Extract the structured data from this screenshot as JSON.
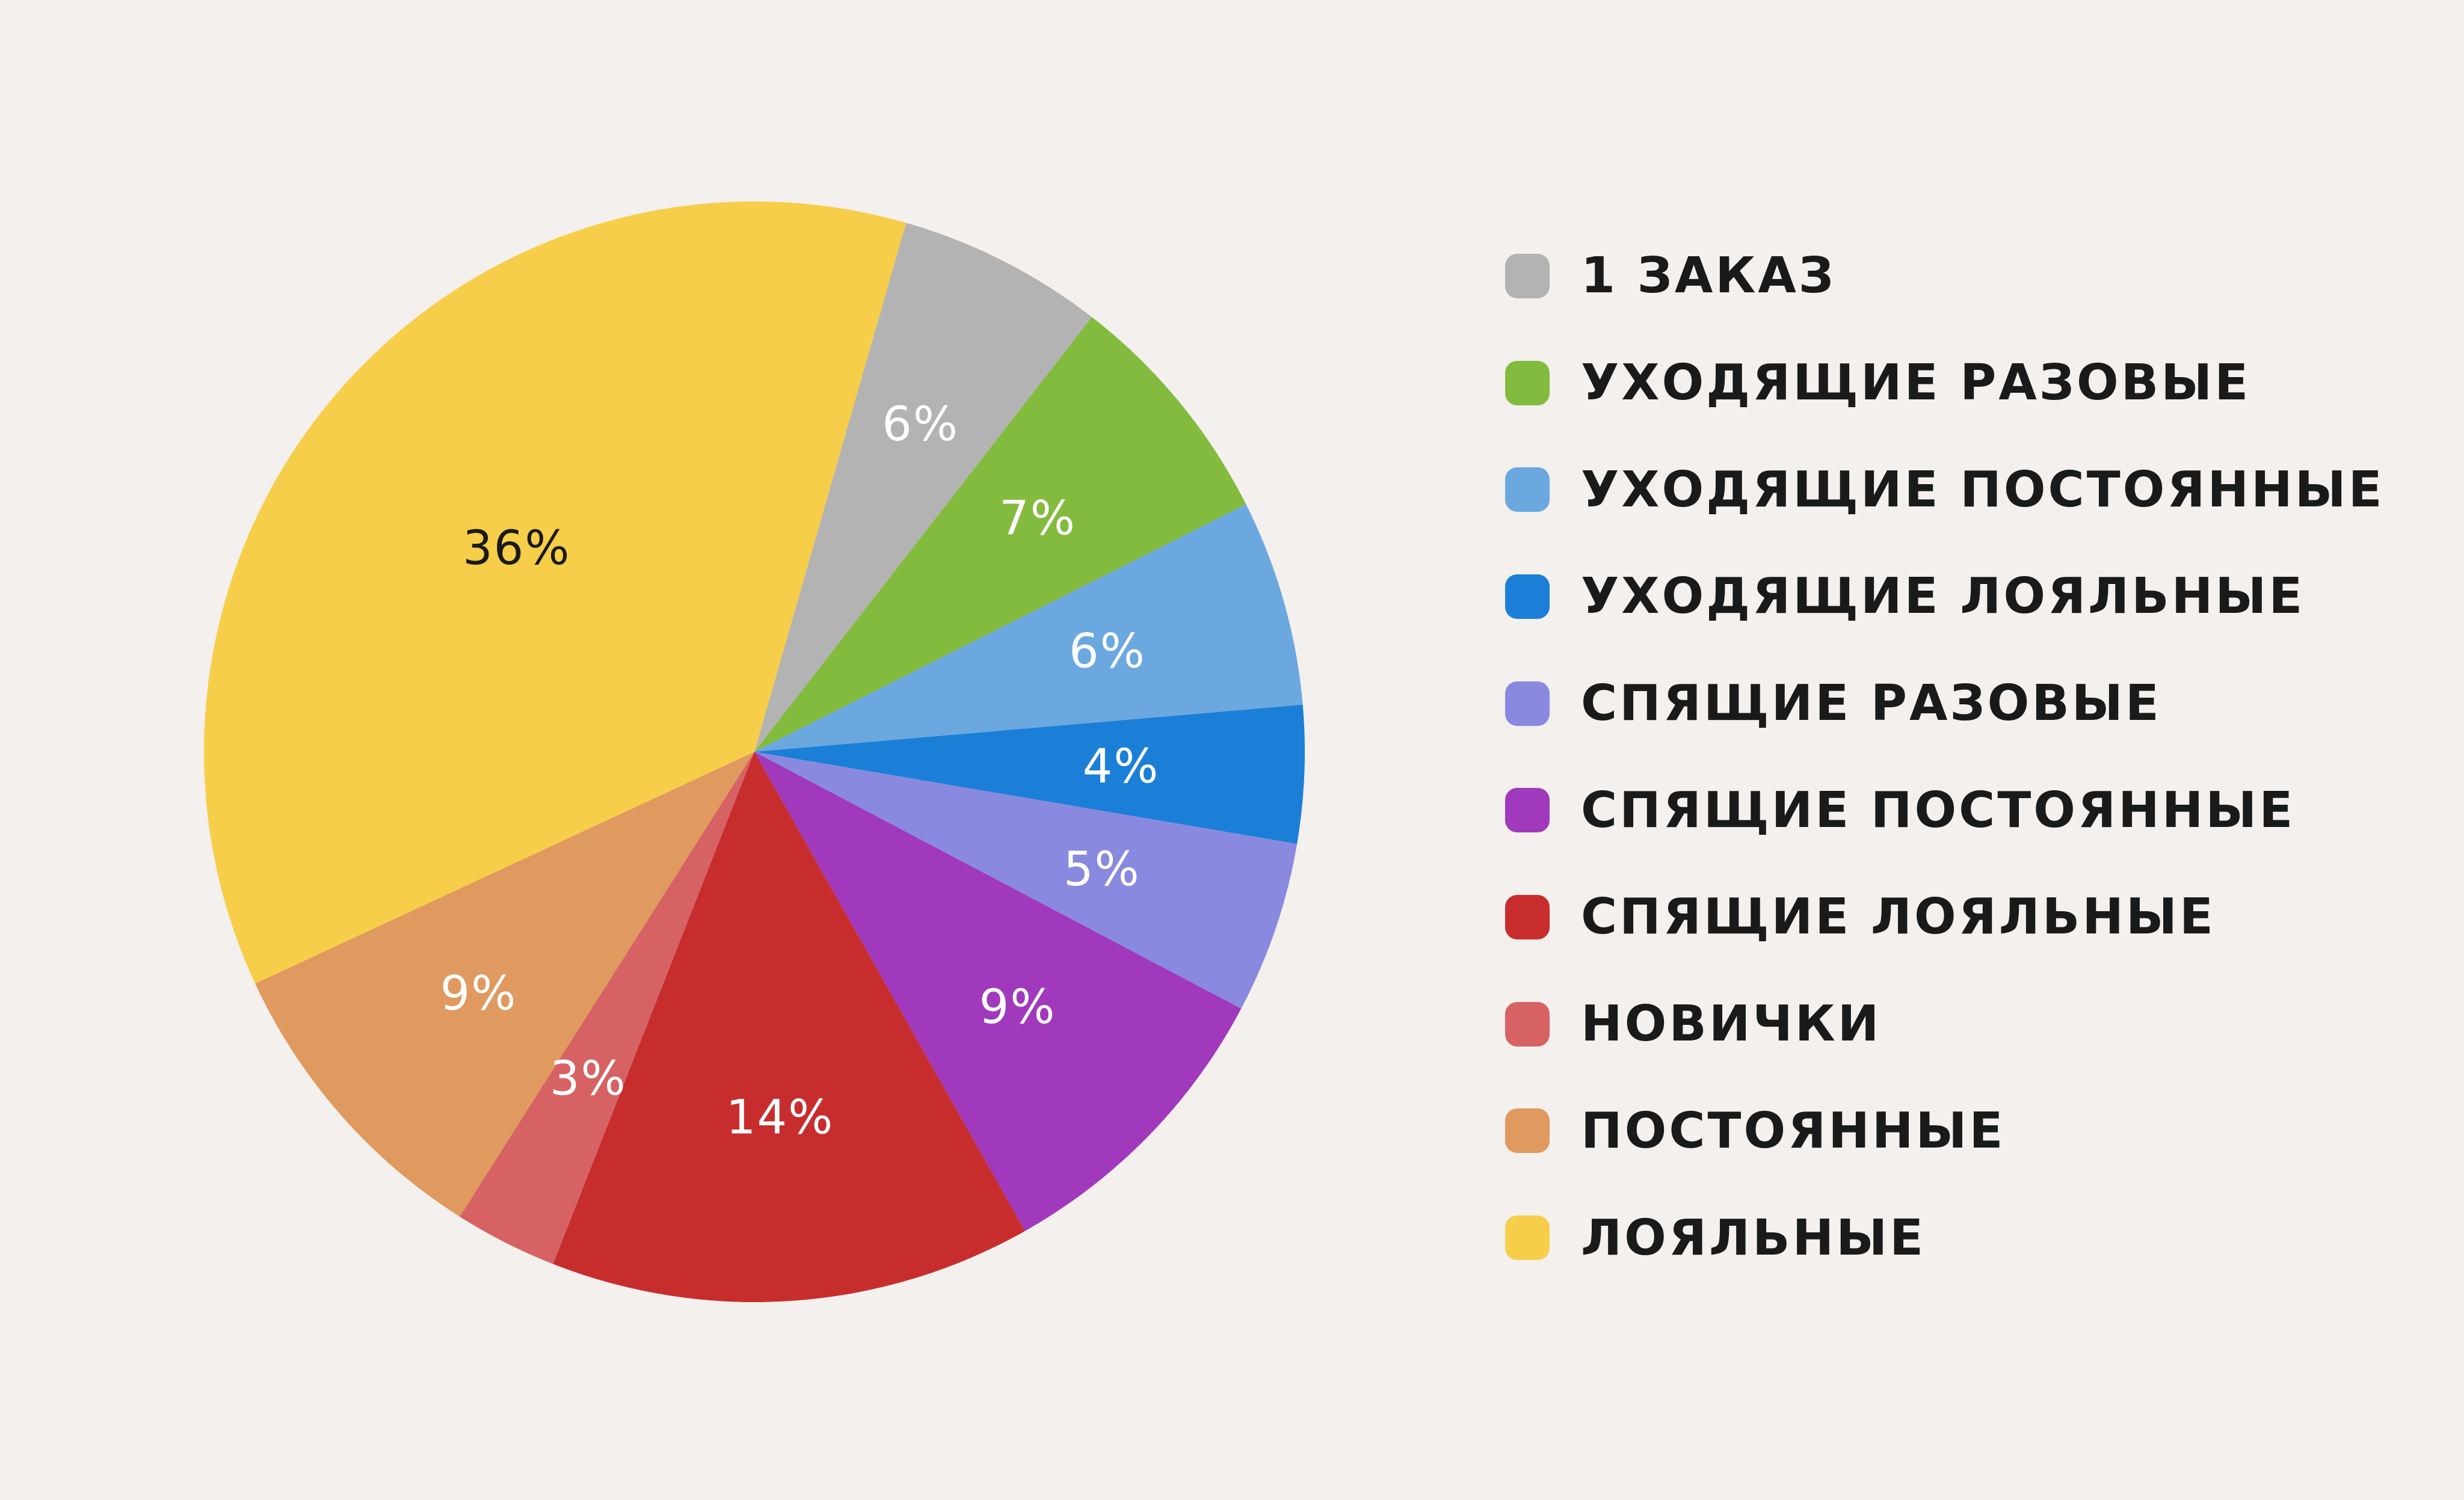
{
  "chart_data": {
    "type": "pie",
    "title": "",
    "unit": "%",
    "series": [
      {
        "name": "1 ЗАКАЗ",
        "value": 6,
        "label": "6%",
        "color": "#b3b3b3",
        "label_color": "#ffffff"
      },
      {
        "name": "УХОДЯЩИЕ РАЗОВЫЕ",
        "value": 7,
        "label": "7%",
        "color": "#83bb3e",
        "label_color": "#ffffff"
      },
      {
        "name": "УХОДЯЩИЕ ПОСТОЯННЫЕ",
        "value": 6,
        "label": "6%",
        "color": "#6ca8e0",
        "label_color": "#ffffff"
      },
      {
        "name": "УХОДЯЩИЕ ЛОЯЛЬНЫЕ",
        "value": 4,
        "label": "4%",
        "color": "#1b7fd8",
        "label_color": "#ffffff"
      },
      {
        "name": "СПЯЩИЕ РАЗОВЫЕ",
        "value": 5,
        "label": "5%",
        "color": "#8a89e0",
        "label_color": "#ffffff"
      },
      {
        "name": "СПЯЩИЕ ПОСТОЯННЫЕ",
        "value": 9,
        "label": "9%",
        "color": "#a139bc",
        "label_color": "#ffffff"
      },
      {
        "name": "СПЯЩИЕ ЛОЯЛЬНЫЕ",
        "value": 14,
        "label": "14%",
        "color": "#c82d2e",
        "label_color": "#ffffff"
      },
      {
        "name": "НОВИЧКИ",
        "value": 3,
        "label": "3%",
        "color": "#d66264",
        "label_color": "#ffffff"
      },
      {
        "name": "ПОСТОЯННЫЕ",
        "value": 9,
        "label": "9%",
        "color": "#e0995e",
        "label_color": "#ffffff"
      },
      {
        "name": "ЛОЯЛЬНЫЕ",
        "value": 36,
        "label": "36%",
        "color": "#f7ce4a",
        "label_color": "#1a1a1a"
      }
    ],
    "legend_position": "right"
  }
}
